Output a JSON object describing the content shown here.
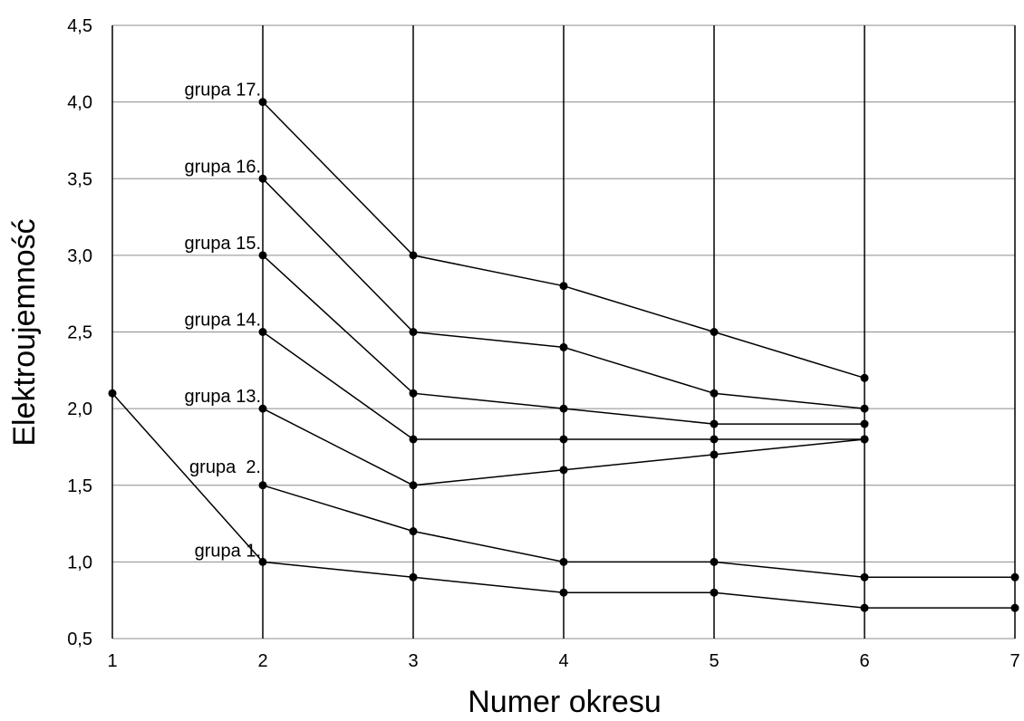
{
  "chart_data": {
    "type": "line",
    "xlabel": "Numer okresu",
    "ylabel": "Elektroujemność",
    "xlim": [
      1,
      7
    ],
    "ylim": [
      0.5,
      4.5
    ],
    "x_ticks": [
      "1",
      "2",
      "3",
      "4",
      "5",
      "6",
      "7"
    ],
    "y_ticks": [
      "0,5",
      "1,0",
      "1,5",
      "2,0",
      "2,5",
      "3,0",
      "3,5",
      "4,0",
      "4,5"
    ],
    "grid": "horizontal and vertical",
    "series": [
      {
        "name": "grupa 1.",
        "x": [
          1,
          2,
          3,
          4,
          5,
          6,
          7
        ],
        "values": [
          2.1,
          1.0,
          0.9,
          0.8,
          0.8,
          0.7,
          0.7
        ]
      },
      {
        "name": "grupa  2.",
        "x": [
          2,
          3,
          4,
          5,
          6,
          7
        ],
        "values": [
          1.5,
          1.2,
          1.0,
          1.0,
          0.9,
          0.9
        ]
      },
      {
        "name": "grupa 13.",
        "x": [
          2,
          3,
          4,
          5,
          6
        ],
        "values": [
          2.0,
          1.5,
          1.6,
          1.7,
          1.8
        ]
      },
      {
        "name": "grupa 14.",
        "x": [
          2,
          3,
          4,
          5,
          6
        ],
        "values": [
          2.5,
          1.8,
          1.8,
          1.8,
          1.8
        ]
      },
      {
        "name": "grupa 15.",
        "x": [
          2,
          3,
          4,
          5,
          6
        ],
        "values": [
          3.0,
          2.1,
          2.0,
          1.9,
          1.9
        ]
      },
      {
        "name": "grupa 16.",
        "x": [
          2,
          3,
          4,
          5,
          6
        ],
        "values": [
          3.5,
          2.5,
          2.4,
          2.1,
          2.0
        ]
      },
      {
        "name": "grupa 17.",
        "x": [
          2,
          3,
          4,
          5,
          6
        ],
        "values": [
          4.0,
          3.0,
          2.8,
          2.5,
          2.2
        ]
      }
    ],
    "colors": {
      "line": "#000000",
      "grid": "#8c8c8c",
      "vgrid": "#000000",
      "marker": "#000000"
    }
  }
}
